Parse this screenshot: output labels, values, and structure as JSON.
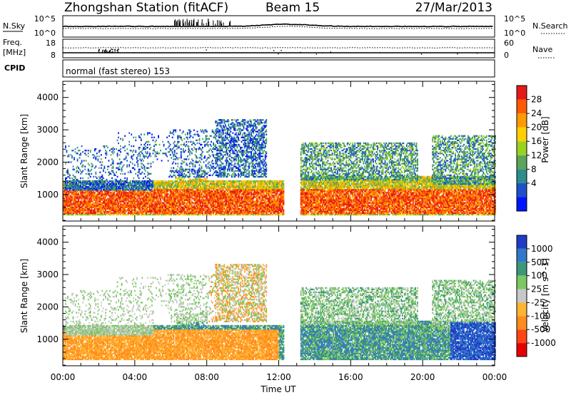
{
  "header": {
    "title": "Zhongshan Station (fitACF)",
    "beam": "Beam 15",
    "date": "27/Mar/2013"
  },
  "noise_panel": {
    "left_label": "N.Sky",
    "right_label": "N.Search",
    "left_ticks": [
      "10^5",
      "10^0"
    ],
    "right_ticks": [
      "10^5",
      "10^0"
    ]
  },
  "freq_panel": {
    "left_label_1": "Freq.",
    "left_label_2": "[MHz]",
    "right_label": "Nave",
    "left_ticks": [
      "18",
      "8"
    ],
    "right_ticks": [
      "60",
      "0"
    ]
  },
  "cpid": {
    "label": "CPID",
    "value": "normal (fast stereo) 153"
  },
  "chart_data": [
    {
      "type": "heatmap",
      "quantity": "power",
      "xlabel": "",
      "ylabel": "Slant Range [km]",
      "x_unit": "hours UT",
      "xlim": [
        0,
        24
      ],
      "ylim": [
        180,
        4500
      ],
      "y_ticks": [
        1000,
        2000,
        3000,
        4000
      ],
      "colorbar": {
        "label": "Power [dB]",
        "ticks": [
          "28",
          "24",
          "20",
          "16",
          "12",
          "8",
          "4"
        ],
        "colors": [
          "#e61919",
          "#ff5a00",
          "#ff9a00",
          "#ffd000",
          "#9ad21e",
          "#5aa55a",
          "#2d8c8c",
          "#1e50c8",
          "#0014ff"
        ]
      }
    },
    {
      "type": "heatmap",
      "quantity": "velocity",
      "xlabel": "Time UT",
      "ylabel": "Slant Range [km]",
      "x_unit": "hours UT",
      "xlim": [
        0,
        24
      ],
      "ylim": [
        180,
        4500
      ],
      "y_ticks": [
        1000,
        2000,
        3000,
        4000
      ],
      "x_tick_labels": [
        "00:00",
        "04:00",
        "08:00",
        "12:00",
        "16:00",
        "20:00",
        "00:00"
      ],
      "colorbar": {
        "label": "Velocity [m s^-1]",
        "ticks": [
          "1000",
          "500",
          "100",
          "25",
          "-25",
          "-100",
          "-500",
          "-1000"
        ],
        "colors": [
          "#1e3cc8",
          "#3278c8",
          "#3c9678",
          "#7dc864",
          "#c8c8c8",
          "#ffb432",
          "#ff8c1e",
          "#ff4614",
          "#e60000"
        ]
      }
    }
  ]
}
